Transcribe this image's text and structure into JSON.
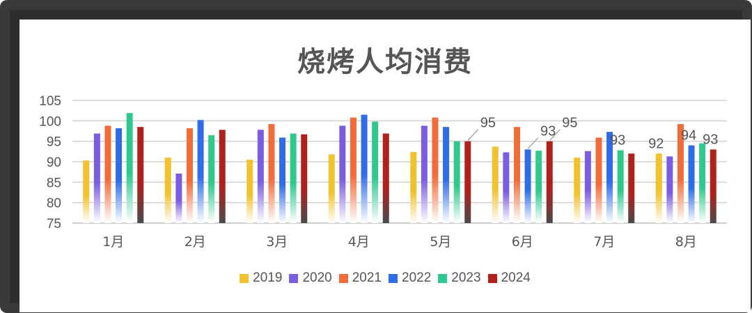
{
  "chart_data": {
    "type": "bar",
    "title": "烧烤人均消费",
    "xlabel": "",
    "ylabel": "",
    "ylim": [
      75,
      105
    ],
    "yticks": [
      75,
      80,
      85,
      90,
      95,
      100,
      105
    ],
    "categories": [
      "1月",
      "2月",
      "3月",
      "4月",
      "5月",
      "6月",
      "7月",
      "8月"
    ],
    "series": [
      {
        "name": "2019",
        "color": "#f2c12e",
        "values": [
          90.3,
          91.0,
          90.5,
          91.8,
          92.4,
          93.7,
          91.0,
          92
        ]
      },
      {
        "name": "2020",
        "color": "#7b5de0",
        "values": [
          96.9,
          87.1,
          97.8,
          98.8,
          98.8,
          92.3,
          92.6,
          91.3
        ]
      },
      {
        "name": "2021",
        "color": "#f26b3a",
        "values": [
          98.8,
          98.2,
          99.2,
          100.8,
          100.8,
          98.5,
          95.9,
          99.2
        ]
      },
      {
        "name": "2022",
        "color": "#2f6de8",
        "values": [
          98.2,
          100.2,
          95.9,
          101.5,
          98.5,
          93,
          97.3,
          94
        ]
      },
      {
        "name": "2023",
        "color": "#2fc98e",
        "values": [
          101.9,
          96.5,
          96.9,
          99.8,
          95,
          92.7,
          92.8,
          94.5
        ]
      },
      {
        "name": "2024",
        "color": "#b0201d",
        "values": [
          98.5,
          97.8,
          96.7,
          96.9,
          95,
          95,
          92.0,
          93
        ]
      }
    ],
    "data_labels": [
      {
        "category": "5月",
        "series": "2024",
        "text": "95",
        "callout": true
      },
      {
        "category": "6月",
        "series": "2022",
        "text": "93",
        "callout": true
      },
      {
        "category": "6月",
        "series": "2024",
        "text": "95",
        "callout": true
      },
      {
        "category": "7月",
        "series": "2023",
        "text": "93",
        "callout": false
      },
      {
        "category": "8月",
        "series": "2019",
        "text": "92",
        "callout": false
      },
      {
        "category": "8月",
        "series": "2022",
        "text": "94",
        "callout": false
      },
      {
        "category": "8月",
        "series": "2024",
        "text": "93",
        "callout": false
      }
    ],
    "grid": true,
    "legend_position": "bottom",
    "bar_style": "gradient fading to white near baseline (last series stays solid)"
  }
}
